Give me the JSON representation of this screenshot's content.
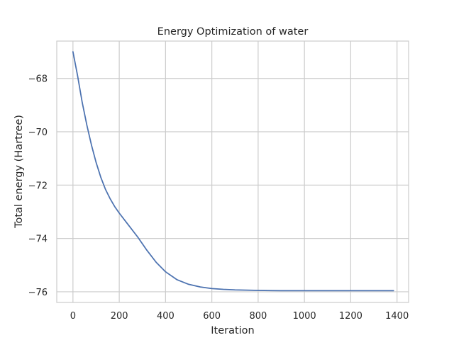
{
  "chart_data": {
    "type": "line",
    "title": "Energy Optimization of water",
    "xlabel": "Iteration",
    "ylabel": "Total energy (Hartree)",
    "xlim": [
      -70,
      1450
    ],
    "ylim": [
      -76.4,
      -66.6
    ],
    "xticks": [
      0,
      200,
      400,
      600,
      800,
      1000,
      1200,
      1400
    ],
    "xtick_labels": [
      "0",
      "200",
      "400",
      "600",
      "800",
      "1000",
      "1200",
      "1400"
    ],
    "yticks": [
      -68,
      -70,
      -72,
      -74,
      -76
    ],
    "ytick_labels": [
      "−68",
      "−70",
      "−72",
      "−74",
      "−76"
    ],
    "grid": true,
    "colors": {
      "line": "#4c72b0",
      "grid": "#cccccc",
      "spine": "#cccccc",
      "text": "#262626"
    },
    "series": [
      {
        "values_x": [
          0,
          20,
          40,
          60,
          80,
          100,
          120,
          140,
          160,
          180,
          200,
          240,
          280,
          320,
          360,
          400,
          450,
          500,
          550,
          600,
          650,
          700,
          800,
          900,
          1000,
          1100,
          1200,
          1300,
          1385
        ],
        "values_y": [
          -67.0,
          -67.9,
          -68.9,
          -69.75,
          -70.5,
          -71.15,
          -71.7,
          -72.15,
          -72.5,
          -72.8,
          -73.05,
          -73.5,
          -73.95,
          -74.45,
          -74.9,
          -75.25,
          -75.55,
          -75.72,
          -75.82,
          -75.88,
          -75.91,
          -75.93,
          -75.95,
          -75.96,
          -75.96,
          -75.96,
          -75.96,
          -75.96,
          -75.96
        ]
      }
    ]
  }
}
